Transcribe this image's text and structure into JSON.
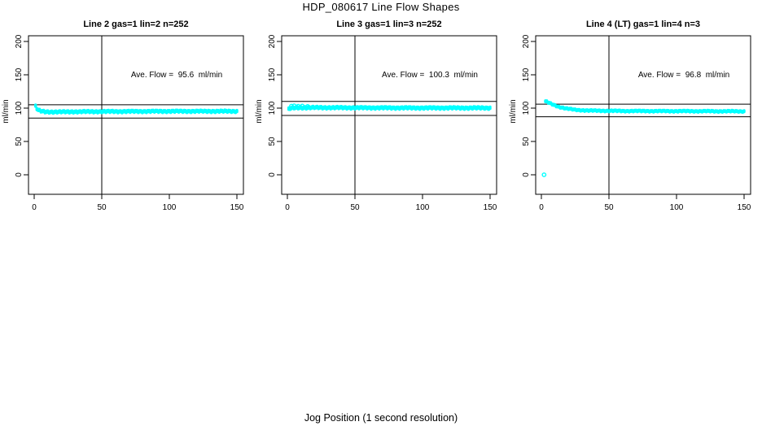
{
  "figure": {
    "title": "HDP_080617  Line Flow Shapes",
    "xlabel": "Jog Position (1 second resolution)",
    "point_color": "#00ffff",
    "axis_color": "#000000",
    "background": "#ffffff"
  },
  "chart_data": [
    {
      "type": "scatter",
      "title": "Line 2 gas=1 lin=2 n=252",
      "n": 252,
      "annotation": "Ave. Flow =  95.6  ml/min",
      "ave_flow_ml_min": 95.6,
      "ylabel": "ml/min",
      "xlim": [
        0,
        150
      ],
      "ylim": [
        0,
        200
      ],
      "xticks": [
        0,
        50,
        100,
        150
      ],
      "yticks": [
        0,
        50,
        100,
        150,
        200
      ],
      "vline_x": 50,
      "hlines": [
        105,
        85
      ],
      "band_halfwidth": 1.7,
      "profile": [
        [
          1,
          103
        ],
        [
          2,
          99
        ],
        [
          3,
          97
        ],
        [
          5,
          95.5
        ],
        [
          8,
          94.5
        ],
        [
          15,
          94.3
        ],
        [
          30,
          94.6
        ],
        [
          60,
          95
        ],
        [
          100,
          95.3
        ],
        [
          150,
          95.3
        ]
      ],
      "outliers": []
    },
    {
      "type": "scatter",
      "title": "Line 3 gas=1 lin=3 n=252",
      "n": 252,
      "annotation": "Ave. Flow =  100.3  ml/min",
      "ave_flow_ml_min": 100.3,
      "ylabel": "ml/min",
      "xlim": [
        0,
        150
      ],
      "ylim": [
        0,
        200
      ],
      "xticks": [
        0,
        50,
        100,
        150
      ],
      "yticks": [
        0,
        50,
        100,
        150,
        200
      ],
      "vline_x": 50,
      "hlines": [
        110,
        89
      ],
      "band_halfwidth": 1.8,
      "profile": [
        [
          1,
          98.5
        ],
        [
          2,
          99.5
        ],
        [
          4,
          100.2
        ],
        [
          8,
          100.6
        ],
        [
          20,
          100.8
        ],
        [
          60,
          100.5
        ],
        [
          100,
          100.3
        ],
        [
          150,
          100.3
        ]
      ],
      "outliers": [
        [
          3,
          103
        ],
        [
          5,
          103.5
        ],
        [
          8,
          102.8
        ],
        [
          11,
          103.2
        ],
        [
          15,
          102.5
        ]
      ]
    },
    {
      "type": "scatter",
      "title": "Line 4 (LT) gas=1 lin=4 n=3",
      "n": 3,
      "annotation": "Ave. Flow =  96.8  ml/min",
      "ave_flow_ml_min": 96.8,
      "ylabel": "ml/min",
      "xlim": [
        0,
        150
      ],
      "ylim": [
        0,
        200
      ],
      "xticks": [
        0,
        50,
        100,
        150
      ],
      "yticks": [
        0,
        50,
        100,
        150,
        200
      ],
      "vline_x": 50,
      "hlines": [
        106,
        87
      ],
      "band_halfwidth": 1.3,
      "profile": [
        [
          3,
          110
        ],
        [
          4,
          109.5
        ],
        [
          6,
          107.5
        ],
        [
          9,
          105
        ],
        [
          13,
          102
        ],
        [
          18,
          99.5
        ],
        [
          25,
          97.5
        ],
        [
          35,
          96.3
        ],
        [
          60,
          95.7
        ],
        [
          100,
          95.5
        ],
        [
          150,
          95.2
        ]
      ],
      "outliers": [
        [
          2,
          0
        ]
      ]
    }
  ]
}
